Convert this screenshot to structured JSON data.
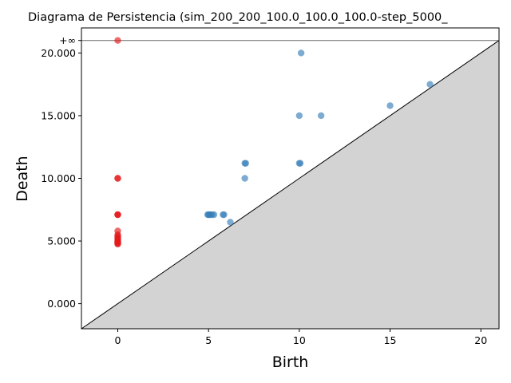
{
  "chart_data": {
    "type": "scatter",
    "title": "Diagrama de Persistencia (sim_200_200_100.0_100.0_100.0-step_5000_",
    "xlabel": "Birth",
    "ylabel": "Death",
    "xlim": [
      -2,
      21
    ],
    "ylim": [
      -2,
      22
    ],
    "x_ticks": [
      0,
      5,
      10,
      15,
      20
    ],
    "y_ticks": [
      {
        "value": 0,
        "label": "0.000"
      },
      {
        "value": 5,
        "label": "5.000"
      },
      {
        "value": 10,
        "label": "10.000"
      },
      {
        "value": 15,
        "label": "15.000"
      },
      {
        "value": 20,
        "label": "20.000"
      }
    ],
    "infinity": {
      "value": 21,
      "label": "+∞"
    },
    "diagonal": true,
    "grid": false,
    "colors": {
      "h0": "#e31a1c",
      "h1": "#377eb8",
      "diagonal_fill": "#d3d3d3",
      "infinity_line": "#666666"
    },
    "series": [
      {
        "color": "#e31a1c",
        "points": [
          [
            0,
            21
          ],
          [
            0,
            10
          ],
          [
            0,
            10
          ],
          [
            0,
            7.1
          ],
          [
            0,
            7.1
          ],
          [
            0,
            7.1
          ],
          [
            0,
            5.8
          ],
          [
            0,
            5.5
          ],
          [
            0,
            5.4
          ],
          [
            0,
            5.3
          ],
          [
            0,
            5.2
          ],
          [
            0,
            5.1
          ],
          [
            0,
            5.0
          ],
          [
            0,
            4.95
          ],
          [
            0,
            4.9
          ],
          [
            0,
            4.85
          ],
          [
            0,
            4.8
          ],
          [
            0,
            4.75
          ]
        ]
      },
      {
        "color": "#377eb8",
        "points": [
          [
            10.1,
            20
          ],
          [
            17.2,
            17.5
          ],
          [
            15.0,
            15.8
          ],
          [
            10.0,
            15.0
          ],
          [
            11.2,
            15.0
          ],
          [
            7.0,
            11.2
          ],
          [
            7.05,
            11.2
          ],
          [
            10.0,
            11.2
          ],
          [
            10.05,
            11.2
          ],
          [
            7.0,
            10.0
          ],
          [
            4.95,
            7.1
          ],
          [
            5.0,
            7.1
          ],
          [
            5.05,
            7.1
          ],
          [
            5.1,
            7.1
          ],
          [
            5.2,
            7.1
          ],
          [
            5.3,
            7.1
          ],
          [
            5.8,
            7.1
          ],
          [
            5.85,
            7.1
          ],
          [
            6.2,
            6.5
          ]
        ]
      }
    ]
  }
}
